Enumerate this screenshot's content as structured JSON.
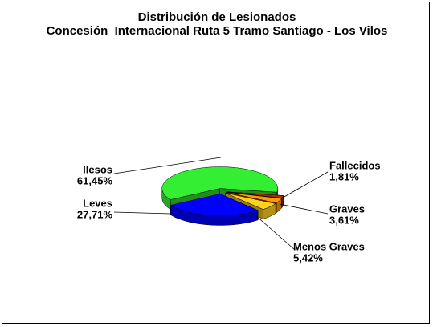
{
  "chart_data": {
    "type": "pie",
    "title": "Distribución de Lesionados",
    "subtitle": "Concesión  Internacional Ruta 5 Tramo Santiago - Los Vilos",
    "categories": [
      "Fallecidos",
      "Graves",
      "Menos Graves",
      "Leves",
      "Ilesos"
    ],
    "values": [
      1.81,
      3.61,
      5.42,
      27.71,
      61.45
    ],
    "value_labels": [
      "1,81%",
      "3,61%",
      "5,42%",
      "27,71%",
      "61,45%"
    ],
    "colors": [
      "#b22a00",
      "#ff9900",
      "#ffd11a",
      "#0000ff",
      "#33ee33"
    ]
  }
}
